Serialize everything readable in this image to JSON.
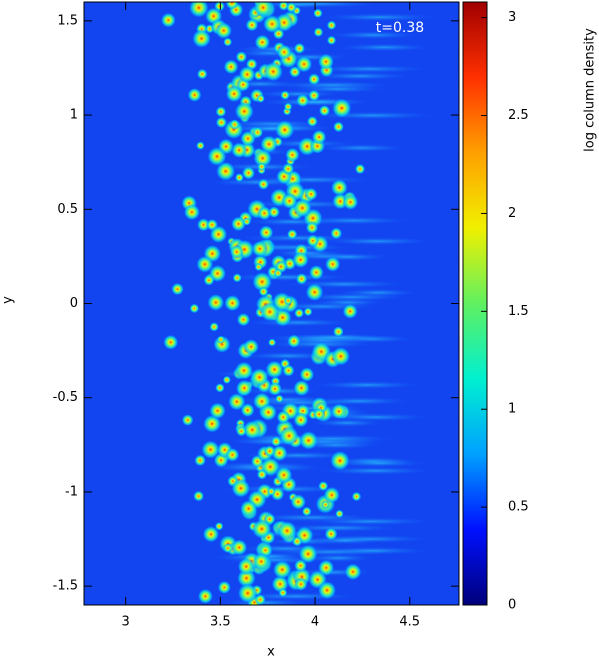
{
  "chart_data": {
    "type": "heatmap",
    "x_label": "x",
    "y_label": "y",
    "colorbar_label": "log column density",
    "annotation": "t=0.38",
    "xlim": [
      2.78,
      4.76
    ],
    "xticks": [
      3,
      3.5,
      4,
      4.5
    ],
    "ylim": [
      -1.6,
      1.6
    ],
    "yticks": [
      -1.5,
      -1,
      -0.5,
      0,
      0.5,
      1,
      1.5
    ],
    "clim": [
      0,
      3.08
    ],
    "cticks": [
      0,
      0.5,
      1,
      1.5,
      2,
      2.5,
      3
    ],
    "colormap": [
      "#00007a",
      "#0010ff",
      "#00a0ff",
      "#00f0d0",
      "#60f060",
      "#f0f000",
      "#ffa000",
      "#ff3000",
      "#a00000"
    ],
    "background": "#1244f0"
  }
}
